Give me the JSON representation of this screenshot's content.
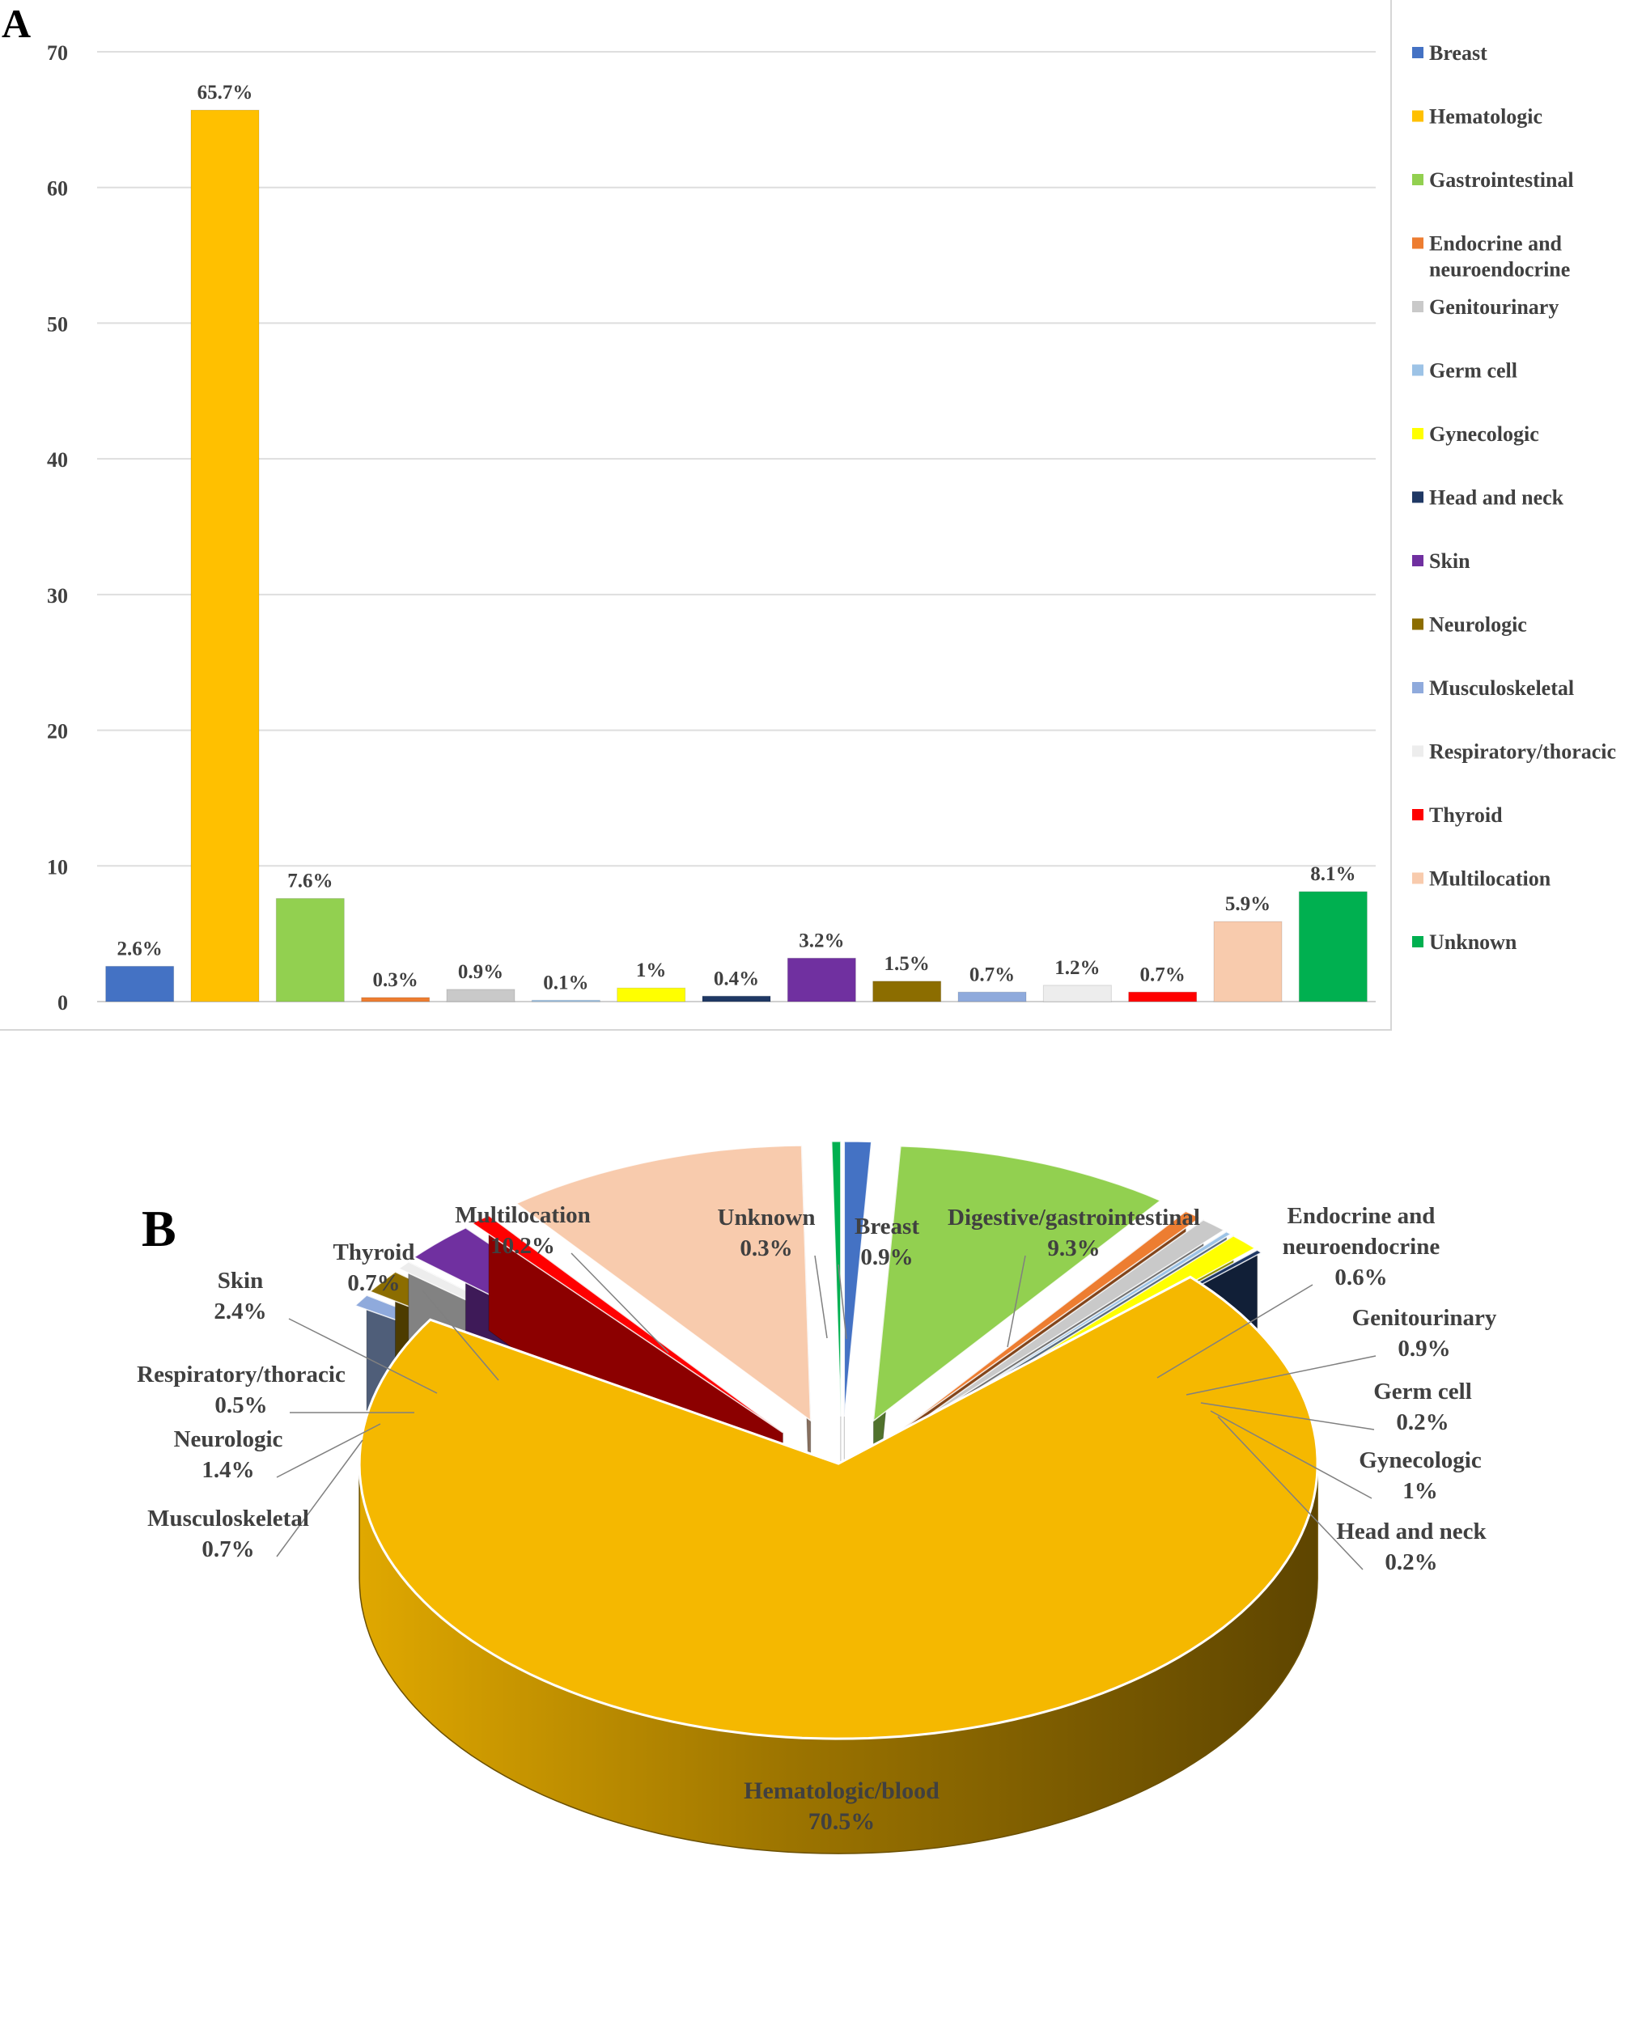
{
  "panel_a_label": "A",
  "panel_b_label": "B",
  "chart_data": [
    {
      "type": "bar",
      "title": "",
      "xlabel": "",
      "ylabel": "",
      "ylim": [
        0,
        70
      ],
      "yticks": [
        0,
        10,
        20,
        30,
        40,
        50,
        60,
        70
      ],
      "grid": true,
      "legend_position": "right",
      "categories": [
        "Breast",
        "Hematologic",
        "Gastrointestinal",
        "Endocrine and neuroendocrine",
        "Genitourinary",
        "Germ cell",
        "Gynecologic",
        "Head and neck",
        "Skin",
        "Neurologic",
        "Musculoskeletal",
        "Respiratory/thoracic",
        "Thyroid",
        "Multilocation",
        "Unknown"
      ],
      "legend_lines": [
        [
          "Breast"
        ],
        [
          "Hematologic"
        ],
        [
          "Gastrointestinal"
        ],
        [
          "Endocrine and",
          "neuroendocrine"
        ],
        [
          "Genitourinary"
        ],
        [
          "Germ cell"
        ],
        [
          "Gynecologic"
        ],
        [
          "Head and neck"
        ],
        [
          "Skin"
        ],
        [
          "Neurologic"
        ],
        [
          "Musculoskeletal"
        ],
        [
          "Respiratory/thoracic"
        ],
        [
          "Thyroid"
        ],
        [
          "Multilocation"
        ],
        [
          "Unknown"
        ]
      ],
      "values": [
        2.6,
        65.7,
        7.6,
        0.3,
        0.9,
        0.1,
        1.0,
        0.4,
        3.2,
        1.5,
        0.7,
        1.2,
        0.7,
        5.9,
        8.1
      ],
      "data_labels": [
        "2.6%",
        "65.7%",
        "7.6%",
        "0.3%",
        "0.9%",
        "0.1%",
        "1%",
        "0.4%",
        "3.2%",
        "1.5%",
        "0.7%",
        "1.2%",
        "0.7%",
        "5.9%",
        "8.1%"
      ],
      "colors": [
        "#4472c4",
        "#ffc000",
        "#92d050",
        "#ed7d31",
        "#c9c9c9",
        "#9dc3e6",
        "#ffff00",
        "#1f3864",
        "#7030a0",
        "#8c6d00",
        "#8faadc",
        "#ededed",
        "#ff0000",
        "#f8cbad",
        "#00b050"
      ]
    },
    {
      "type": "pie",
      "title": "",
      "style": "3d-exploded",
      "slices": [
        {
          "label": "Breast",
          "value": 0.9,
          "pct": "0.9%",
          "color": "#4472c4"
        },
        {
          "label": "Digestive/gastrointestinal",
          "value": 9.3,
          "pct": "9.3%",
          "color": "#92d050"
        },
        {
          "label": "Endocrine and neuroendocrine",
          "value": 0.6,
          "pct": "0.6%",
          "color": "#ed7d31"
        },
        {
          "label": "Genitourinary",
          "value": 0.9,
          "pct": "0.9%",
          "color": "#c9c9c9"
        },
        {
          "label": "Germ cell",
          "value": 0.2,
          "pct": "0.2%",
          "color": "#9dc3e6"
        },
        {
          "label": "Gynecologic",
          "value": 1.0,
          "pct": "1%",
          "color": "#ffff00"
        },
        {
          "label": "Head and neck",
          "value": 0.2,
          "pct": "0.2%",
          "color": "#1f3864"
        },
        {
          "label": "Hematologic/blood",
          "value": 70.5,
          "pct": "70.5%",
          "color": "#f5b800"
        },
        {
          "label": "Musculoskeletal",
          "value": 0.7,
          "pct": "0.7%",
          "color": "#8faadc"
        },
        {
          "label": "Neurologic",
          "value": 1.4,
          "pct": "1.4%",
          "color": "#8c6d00"
        },
        {
          "label": "Respiratory/thoracic",
          "value": 0.5,
          "pct": "0.5%",
          "color": "#ededed"
        },
        {
          "label": "Skin",
          "value": 2.4,
          "pct": "2.4%",
          "color": "#7030a0"
        },
        {
          "label": "Thyroid",
          "value": 0.7,
          "pct": "0.7%",
          "color": "#ff0000"
        },
        {
          "label": "Multilocation",
          "value": 10.2,
          "pct": "10.2%",
          "color": "#f8cbad"
        },
        {
          "label": "Unknown",
          "value": 0.3,
          "pct": "0.3%",
          "color": "#00b050"
        }
      ],
      "label_lines": [
        [
          "Breast",
          "0.9%"
        ],
        [
          "Digestive/gastrointestinal",
          "9.3%"
        ],
        [
          "Endocrine and",
          "neuroendocrine",
          "0.6%"
        ],
        [
          "Genitourinary",
          "0.9%"
        ],
        [
          "Germ cell",
          "0.2%"
        ],
        [
          "Gynecologic",
          "1%"
        ],
        [
          "Head and neck",
          "0.2%"
        ],
        [
          "Hematologic/blood",
          "70.5%"
        ],
        [
          "Musculoskeletal",
          "0.7%"
        ],
        [
          "Neurologic",
          "1.4%"
        ],
        [
          "Respiratory/thoracic",
          "0.5%"
        ],
        [
          "Skin",
          "2.4%"
        ],
        [
          "Thyroid",
          "0.7%"
        ],
        [
          "Multilocation",
          "10.2%"
        ],
        [
          "Unknown",
          "0.3%"
        ]
      ]
    }
  ]
}
